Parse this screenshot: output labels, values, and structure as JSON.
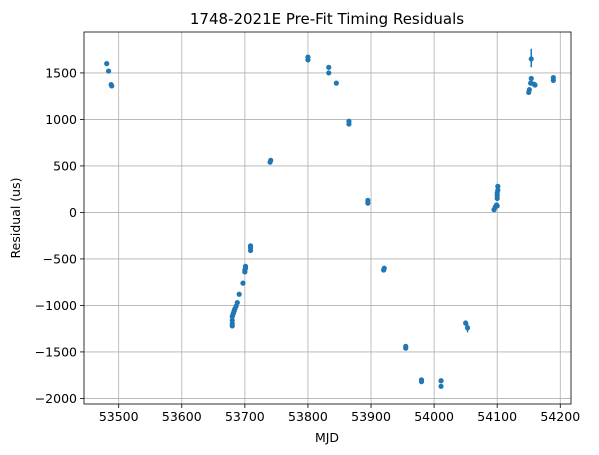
{
  "chart_data": {
    "type": "scatter",
    "title": "1748-2021E Pre-Fit Timing Residuals",
    "xlabel": "MJD",
    "ylabel": "Residual (us)",
    "xlim": [
      53445,
      54217
    ],
    "ylim": [
      -2060,
      1940
    ],
    "xticks": [
      53500,
      53600,
      53700,
      53800,
      53900,
      54000,
      54100,
      54200
    ],
    "yticks": [
      -2000,
      -1500,
      -1000,
      -500,
      0,
      500,
      1000,
      1500
    ],
    "grid": true,
    "color": "#1f77b4",
    "series": [
      {
        "points": [
          [
            53481,
            1600
          ],
          [
            53484,
            1520
          ],
          [
            53488,
            1375
          ],
          [
            53489,
            1360
          ],
          [
            53680,
            -1220
          ],
          [
            53680,
            -1195
          ],
          [
            53680,
            -1160
          ],
          [
            53680,
            -1120
          ],
          [
            53681,
            -1100
          ],
          [
            53682,
            -1080
          ],
          [
            53683,
            -1060
          ],
          [
            53684,
            -1040
          ],
          [
            53686,
            -1010
          ],
          [
            53688,
            -970
          ],
          [
            53691,
            -880
          ],
          [
            53697,
            -760
          ],
          [
            53700,
            -640
          ],
          [
            53700,
            -620
          ],
          [
            53701,
            -600
          ],
          [
            53701,
            -580
          ],
          [
            53709,
            -410
          ],
          [
            53709,
            -380
          ],
          [
            53709,
            -360
          ],
          [
            53740,
            540
          ],
          [
            53741,
            560
          ],
          [
            53800,
            1640
          ],
          [
            53800,
            1670
          ],
          [
            53833,
            1500
          ],
          [
            53833,
            1560
          ],
          [
            53845,
            1390
          ],
          [
            53865,
            950
          ],
          [
            53865,
            980
          ],
          [
            53895,
            100
          ],
          [
            53895,
            130
          ],
          [
            53920,
            -620
          ],
          [
            53921,
            -600
          ],
          [
            53955,
            -1460
          ],
          [
            53955,
            -1440
          ],
          [
            53980,
            -1820
          ],
          [
            53980,
            -1800
          ],
          [
            54011,
            -1870
          ],
          [
            54011,
            -1810
          ],
          [
            54050,
            -1190
          ],
          [
            54053,
            -1240
          ],
          [
            54095,
            30
          ],
          [
            54097,
            60
          ],
          [
            54099,
            80
          ],
          [
            54100,
            70
          ],
          [
            54100,
            150
          ],
          [
            54100,
            180
          ],
          [
            54100,
            210
          ],
          [
            54101,
            240
          ],
          [
            54101,
            280
          ],
          [
            54150,
            1290
          ],
          [
            54151,
            1320
          ],
          [
            54153,
            1390
          ],
          [
            54154,
            1440
          ],
          [
            54154,
            1650
          ],
          [
            54158,
            1380
          ],
          [
            54160,
            1370
          ],
          [
            54189,
            1420
          ],
          [
            54189,
            1450
          ]
        ],
        "errorbars": [
          [
            54154,
            1560,
            1760
          ],
          [
            54053,
            -1290,
            -1190
          ],
          [
            54050,
            -1220,
            -1160
          ]
        ]
      }
    ]
  }
}
